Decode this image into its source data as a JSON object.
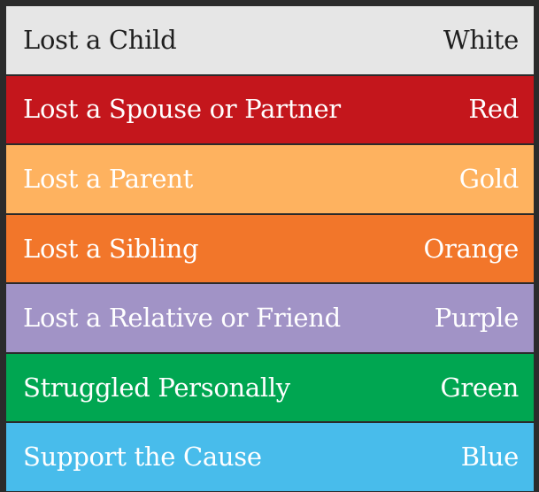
{
  "legend": {
    "rows": [
      {
        "label": "Lost a Child",
        "color_name": "White",
        "bg": "#e6e6e6",
        "text_color": "#1f1f1f"
      },
      {
        "label": "Lost a Spouse or Partner",
        "color_name": "Red",
        "bg": "#c4161c",
        "text_color": "#ffffff"
      },
      {
        "label": "Lost a Parent",
        "color_name": "Gold",
        "bg": "#feb25f",
        "text_color": "#ffffff"
      },
      {
        "label": "Lost a Sibling",
        "color_name": "Orange",
        "bg": "#f2762a",
        "text_color": "#ffffff"
      },
      {
        "label": "Lost a Relative or Friend",
        "color_name": "Purple",
        "bg": "#a193c6",
        "text_color": "#ffffff"
      },
      {
        "label": "Struggled Personally",
        "color_name": "Green",
        "bg": "#00a651",
        "text_color": "#ffffff"
      },
      {
        "label": "Support the Cause",
        "color_name": "Blue",
        "bg": "#48bceb",
        "text_color": "#ffffff"
      }
    ]
  }
}
